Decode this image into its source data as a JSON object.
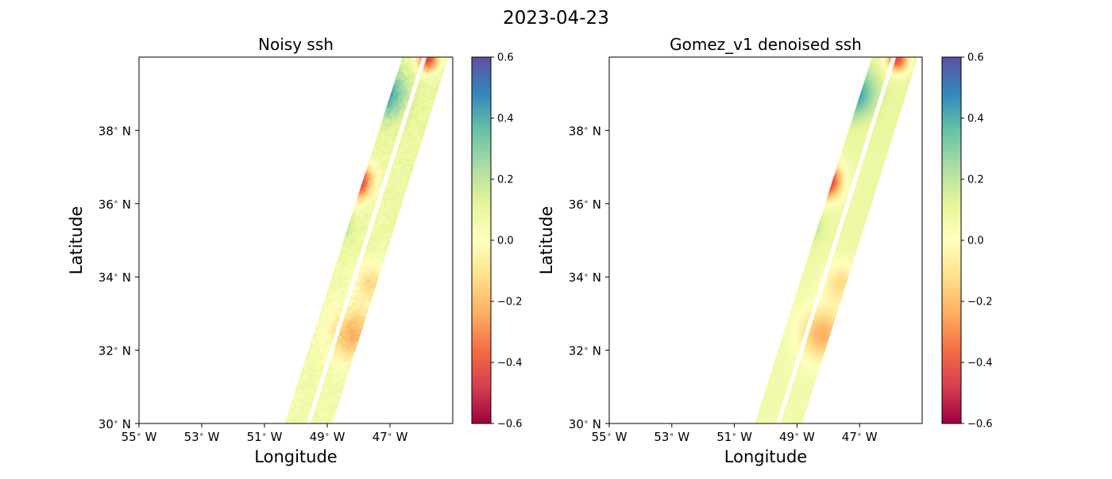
{
  "suptitle": "2023-04-23",
  "colors": {
    "colormap": "Spectral",
    "colormap_stops": [
      "#9e0142",
      "#d53e4f",
      "#f46d43",
      "#fdae61",
      "#fee08b",
      "#ffffbf",
      "#e6f598",
      "#abdda4",
      "#66c2a5",
      "#3288bd",
      "#5e4fa2"
    ],
    "gap": "#ffffff",
    "frame": "#000000"
  },
  "chart_data": [
    {
      "type": "heatmap",
      "title": "Noisy ssh",
      "xlabel": "Longitude",
      "ylabel": "Latitude",
      "xlim": [
        -55,
        -45
      ],
      "ylim": [
        30,
        40
      ],
      "xticks": [
        -55,
        -53,
        -51,
        -49,
        -47
      ],
      "xtick_labels": [
        "55$^\\circ$ W",
        "53$^\\circ$ W",
        "51$^\\circ$ W",
        "49$^\\circ$ W",
        "47$^\\circ$ W"
      ],
      "yticks": [
        30,
        32,
        34,
        36,
        38
      ],
      "ytick_labels": [
        "30$^\\circ$ N",
        "32$^\\circ$ N",
        "34$^\\circ$ N",
        "36$^\\circ$ N",
        "38$^\\circ$ N"
      ],
      "colorbar": {
        "range": [
          -0.6,
          0.6
        ],
        "ticks": [
          -0.6,
          -0.4,
          -0.2,
          0.0,
          0.2,
          0.4,
          0.6
        ],
        "tick_labels": [
          "−0.6",
          "−0.4",
          "−0.2",
          "0.0",
          "0.2",
          "0.4",
          "0.6"
        ]
      },
      "noise": true,
      "swath": {
        "left_edge": [
          [
            -50.35,
            30.0
          ],
          [
            -46.6,
            40.0
          ]
        ],
        "right_edge": [
          [
            -48.85,
            30.0
          ],
          [
            -45.15,
            40.0
          ]
        ],
        "nadir_gap": [
          [
            -49.6,
            30.0
          ],
          [
            -45.9,
            40.0
          ]
        ]
      },
      "ssh_features": [
        {
          "kind": "eddy",
          "lon": -48.1,
          "lat": 36.6,
          "value": -0.58,
          "radius_deg": 0.5
        },
        {
          "kind": "high",
          "lon": -47.2,
          "lat": 39.0,
          "value": 0.45,
          "radius_deg": 0.65
        },
        {
          "kind": "high",
          "lon": -48.7,
          "lat": 35.4,
          "value": 0.28,
          "radius_deg": 0.45
        },
        {
          "kind": "low",
          "lon": -48.2,
          "lat": 32.4,
          "value": -0.22,
          "radius_deg": 0.75
        },
        {
          "kind": "low",
          "lon": -47.6,
          "lat": 33.8,
          "value": -0.12,
          "radius_deg": 0.55
        },
        {
          "kind": "low",
          "lon": -45.8,
          "lat": 39.9,
          "value": -0.45,
          "radius_deg": 0.35
        },
        {
          "kind": "high",
          "lon": -48.9,
          "lat": 37.5,
          "value": 0.15,
          "radius_deg": 0.8
        }
      ]
    },
    {
      "type": "heatmap",
      "title": "Gomez_v1 denoised ssh",
      "xlabel": "Longitude",
      "ylabel": "Latitude",
      "xlim": [
        -55,
        -45
      ],
      "ylim": [
        30,
        40
      ],
      "xticks": [
        -55,
        -53,
        -51,
        -49,
        -47
      ],
      "xtick_labels": [
        "55$^\\circ$ W",
        "53$^\\circ$ W",
        "51$^\\circ$ W",
        "49$^\\circ$ W",
        "47$^\\circ$ W"
      ],
      "yticks": [
        30,
        32,
        34,
        36,
        38
      ],
      "ytick_labels": [
        "30$^\\circ$ N",
        "32$^\\circ$ N",
        "34$^\\circ$ N",
        "36$^\\circ$ N",
        "38$^\\circ$ N"
      ],
      "colorbar": {
        "range": [
          -0.6,
          0.6
        ],
        "ticks": [
          -0.6,
          -0.4,
          -0.2,
          0.0,
          0.2,
          0.4,
          0.6
        ],
        "tick_labels": [
          "−0.6",
          "−0.4",
          "−0.2",
          "0.0",
          "0.2",
          "0.4",
          "0.6"
        ]
      },
      "noise": false,
      "swath": {
        "left_edge": [
          [
            -50.35,
            30.0
          ],
          [
            -46.6,
            40.0
          ]
        ],
        "right_edge": [
          [
            -48.85,
            30.0
          ],
          [
            -45.15,
            40.0
          ]
        ],
        "nadir_gap": [
          [
            -49.6,
            30.0
          ],
          [
            -45.9,
            40.0
          ]
        ]
      },
      "ssh_features": [
        {
          "kind": "eddy",
          "lon": -48.1,
          "lat": 36.6,
          "value": -0.58,
          "radius_deg": 0.5
        },
        {
          "kind": "high",
          "lon": -47.2,
          "lat": 39.0,
          "value": 0.45,
          "radius_deg": 0.65
        },
        {
          "kind": "high",
          "lon": -48.7,
          "lat": 35.4,
          "value": 0.28,
          "radius_deg": 0.45
        },
        {
          "kind": "low",
          "lon": -48.2,
          "lat": 32.4,
          "value": -0.22,
          "radius_deg": 0.75
        },
        {
          "kind": "low",
          "lon": -47.6,
          "lat": 33.8,
          "value": -0.12,
          "radius_deg": 0.55
        },
        {
          "kind": "low",
          "lon": -45.8,
          "lat": 39.9,
          "value": -0.45,
          "radius_deg": 0.35
        },
        {
          "kind": "high",
          "lon": -48.9,
          "lat": 37.5,
          "value": 0.15,
          "radius_deg": 0.8
        }
      ]
    }
  ]
}
